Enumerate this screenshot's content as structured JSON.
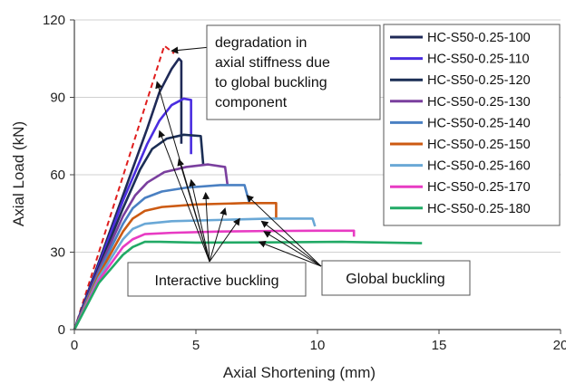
{
  "chart_data": {
    "type": "line",
    "title": "",
    "xlabel": "Axial Shortening (mm)",
    "ylabel": "Axial Load (kN)",
    "xlim": [
      0,
      20
    ],
    "ylim": [
      0,
      120
    ],
    "xticks": [
      0,
      5,
      10,
      15,
      20
    ],
    "yticks": [
      0,
      30,
      60,
      90,
      120
    ],
    "xtick_labels": [
      "0",
      "5",
      "10",
      "15",
      "20"
    ],
    "ytick_labels": [
      "0",
      "30",
      "60",
      "90",
      "120"
    ],
    "grid": "horizontal",
    "legend_position": "right",
    "series": [
      {
        "name": "HC-S50-0.25-100",
        "color": "#1f2a57",
        "points": [
          [
            0,
            0
          ],
          [
            1,
            26
          ],
          [
            2,
            52
          ],
          [
            3,
            78
          ],
          [
            3.5,
            92
          ],
          [
            4,
            101
          ],
          [
            4.3,
            105
          ],
          [
            4.4,
            104
          ],
          [
            4.4,
            72
          ]
        ]
      },
      {
        "name": "HC-S50-0.25-110",
        "color": "#4a2de0",
        "points": [
          [
            0,
            0
          ],
          [
            1,
            25
          ],
          [
            2,
            50
          ],
          [
            3,
            72
          ],
          [
            3.5,
            81
          ],
          [
            4,
            87
          ],
          [
            4.5,
            89.5
          ],
          [
            4.8,
            89
          ],
          [
            4.8,
            68
          ]
        ]
      },
      {
        "name": "HC-S50-0.25-120",
        "color": "#1b2e55",
        "points": [
          [
            0,
            0
          ],
          [
            1,
            24
          ],
          [
            2,
            47
          ],
          [
            2.7,
            62
          ],
          [
            3.2,
            70
          ],
          [
            3.8,
            74
          ],
          [
            4.5,
            75.5
          ],
          [
            5.2,
            75
          ],
          [
            5.3,
            64
          ]
        ]
      },
      {
        "name": "HC-S50-0.25-130",
        "color": "#7a3f9e",
        "points": [
          [
            0,
            0
          ],
          [
            1,
            23
          ],
          [
            2,
            44
          ],
          [
            2.5,
            52
          ],
          [
            3,
            57
          ],
          [
            3.7,
            61
          ],
          [
            4.6,
            63
          ],
          [
            5.5,
            64
          ],
          [
            6.2,
            63
          ],
          [
            6.3,
            56
          ]
        ]
      },
      {
        "name": "HC-S50-0.25-140",
        "color": "#4a80c2",
        "points": [
          [
            0,
            0
          ],
          [
            1,
            22
          ],
          [
            2,
            41
          ],
          [
            2.4,
            47
          ],
          [
            2.9,
            51
          ],
          [
            3.6,
            53.5
          ],
          [
            4.6,
            55
          ],
          [
            6,
            56
          ],
          [
            7,
            56
          ],
          [
            7.2,
            49
          ]
        ]
      },
      {
        "name": "HC-S50-0.25-150",
        "color": "#cc5a12",
        "points": [
          [
            0,
            0
          ],
          [
            1,
            21
          ],
          [
            2,
            38
          ],
          [
            2.4,
            43
          ],
          [
            2.9,
            46
          ],
          [
            3.6,
            47.5
          ],
          [
            5,
            48.5
          ],
          [
            7,
            49
          ],
          [
            8.3,
            49
          ],
          [
            8.3,
            43
          ]
        ]
      },
      {
        "name": "HC-S50-0.25-160",
        "color": "#6aa8d6",
        "points": [
          [
            0,
            0
          ],
          [
            1,
            20
          ],
          [
            2,
            35
          ],
          [
            2.4,
            39
          ],
          [
            2.9,
            41
          ],
          [
            4,
            42
          ],
          [
            6,
            42.5
          ],
          [
            8,
            43
          ],
          [
            9.8,
            43
          ],
          [
            9.9,
            40
          ]
        ]
      },
      {
        "name": "HC-S50-0.25-170",
        "color": "#e83bc3",
        "points": [
          [
            0,
            0
          ],
          [
            1,
            19
          ],
          [
            2,
            32
          ],
          [
            2.4,
            35
          ],
          [
            2.9,
            37
          ],
          [
            4,
            37.5
          ],
          [
            6,
            38
          ],
          [
            8,
            38.2
          ],
          [
            10,
            38.3
          ],
          [
            11.5,
            38.3
          ],
          [
            11.5,
            36
          ]
        ]
      },
      {
        "name": "HC-S50-0.25-180",
        "color": "#22aa66",
        "points": [
          [
            0,
            0
          ],
          [
            1,
            18
          ],
          [
            2,
            29
          ],
          [
            2.4,
            32
          ],
          [
            2.9,
            34
          ],
          [
            3.5,
            34
          ],
          [
            5,
            33.7
          ],
          [
            8,
            33.8
          ],
          [
            11,
            34
          ],
          [
            14.3,
            33.5
          ]
        ]
      }
    ],
    "reference_line": {
      "style": "dashed",
      "color": "#e01e1e",
      "points": [
        [
          0,
          0
        ],
        [
          3.7,
          110
        ],
        [
          4.1,
          107
        ]
      ]
    },
    "annotations": [
      {
        "id": "degradation",
        "lines": [
          "degradation in",
          "axial stiffness due",
          "to global buckling",
          "component"
        ]
      },
      {
        "id": "interactive",
        "text": "Interactive buckling",
        "arrow_targets": [
          [
            3.4,
            96
          ],
          [
            3.5,
            77
          ],
          [
            4.3,
            66
          ],
          [
            4.8,
            58
          ],
          [
            5.4,
            53
          ],
          [
            6.2,
            47
          ],
          [
            6.8,
            43
          ]
        ]
      },
      {
        "id": "global",
        "text": "Global buckling",
        "arrow_targets": [
          [
            7.1,
            52
          ],
          [
            7.7,
            42
          ],
          [
            7.8,
            38
          ],
          [
            7.6,
            34
          ]
        ]
      }
    ]
  }
}
